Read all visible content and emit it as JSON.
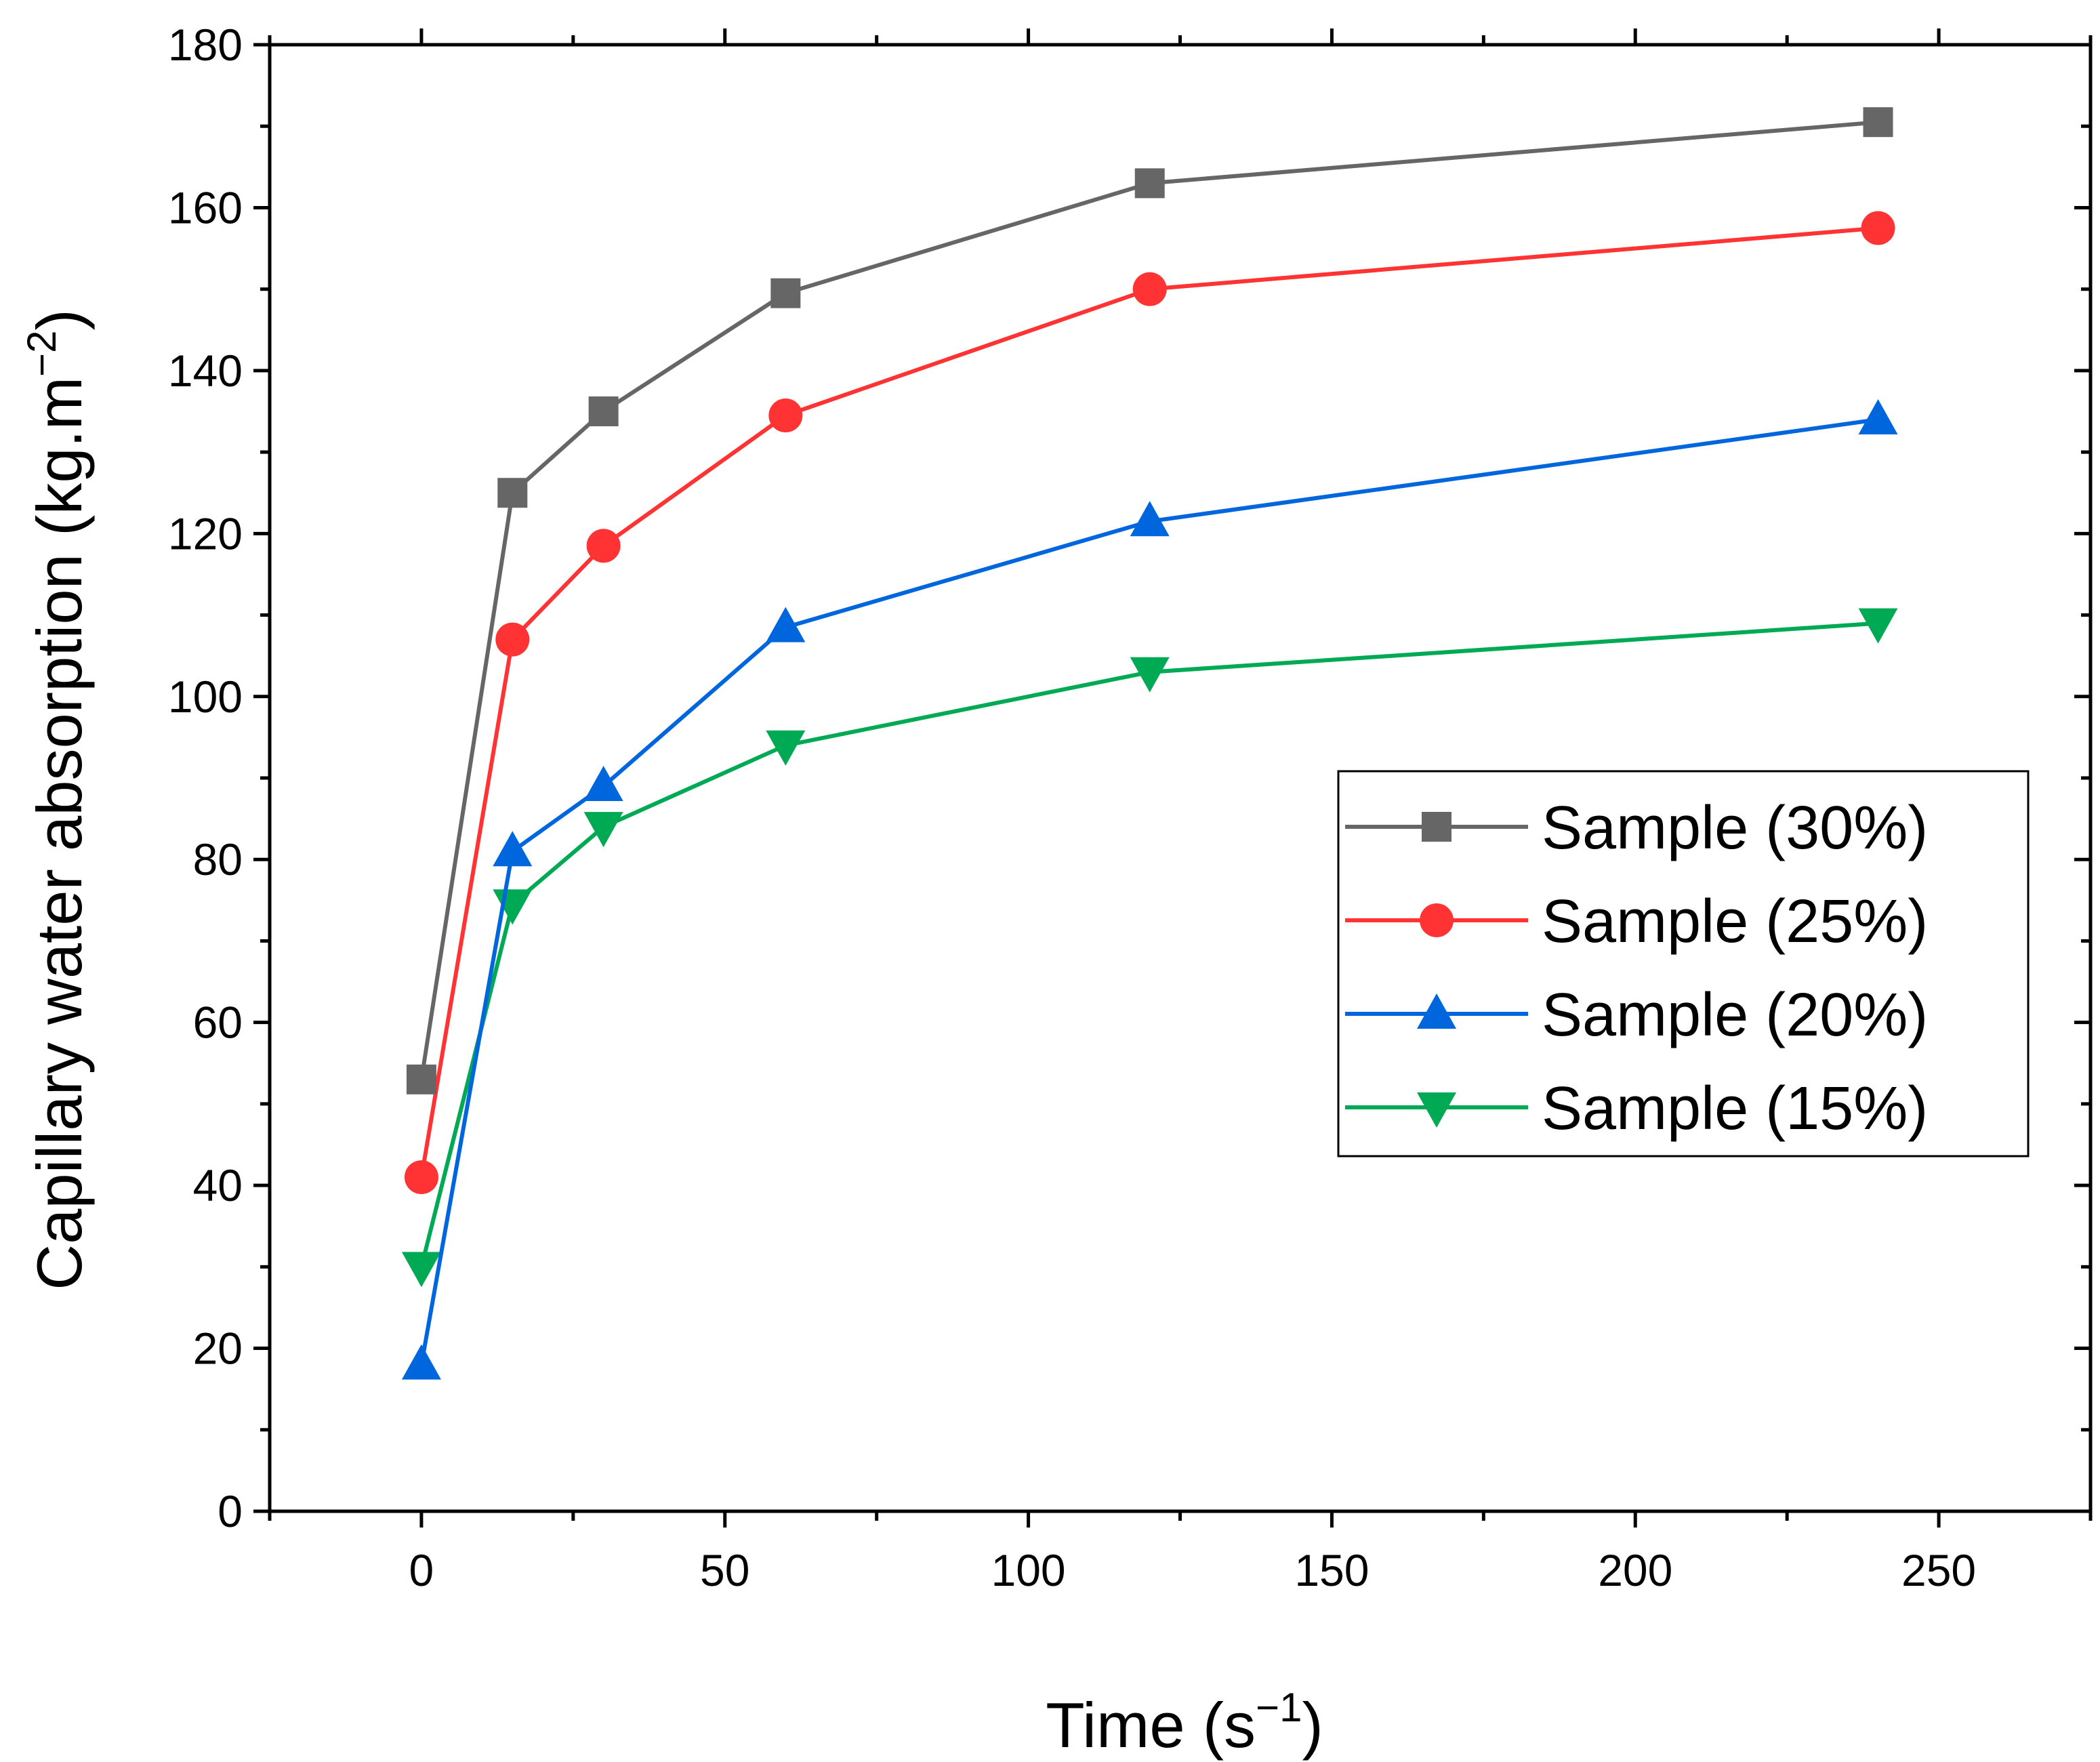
{
  "chart_data": {
    "type": "line",
    "title": "",
    "xlabel": "Time (s",
    "xlabel_sup": "−1",
    "xlabel_close": ")",
    "ylabel": "Capillary water absorption (kg.m",
    "ylabel_sup": "−2",
    "ylabel_close": ")",
    "xlim": [
      -25,
      275
    ],
    "ylim": [
      0,
      180
    ],
    "x_ticks": [
      0,
      50,
      100,
      150,
      200,
      250
    ],
    "x_tick_labels": [
      "0",
      "50",
      "100",
      "150",
      "200",
      "250"
    ],
    "x_minor_ticks": [
      -25,
      25,
      75,
      125,
      175,
      225,
      275
    ],
    "y_ticks": [
      0,
      20,
      40,
      60,
      80,
      100,
      120,
      140,
      160,
      180
    ],
    "y_tick_labels": [
      "0",
      "20",
      "40",
      "60",
      "80",
      "100",
      "120",
      "140",
      "160",
      "180"
    ],
    "y_minor_ticks": [
      10,
      30,
      50,
      70,
      90,
      110,
      130,
      150,
      170
    ],
    "grid": false,
    "legend_position": "center-right",
    "x": [
      0,
      15,
      30,
      60,
      120,
      240
    ],
    "series": [
      {
        "name": "Sample (30%)",
        "color": "#666666",
        "marker": "square",
        "values": [
          53,
          125,
          135,
          149.5,
          163,
          170.5
        ]
      },
      {
        "name": "Sample (25%)",
        "color": "#ff3333",
        "marker": "circle",
        "values": [
          41,
          107,
          118.5,
          134.5,
          150,
          157.5
        ]
      },
      {
        "name": "Sample (20%)",
        "color": "#0066dd",
        "marker": "triangle-up",
        "values": [
          18,
          81,
          89,
          108.5,
          121.5,
          134
        ]
      },
      {
        "name": "Sample (15%)",
        "color": "#00aa55",
        "marker": "triangle-down",
        "values": [
          30,
          74.5,
          84,
          94,
          103,
          109
        ]
      }
    ]
  }
}
